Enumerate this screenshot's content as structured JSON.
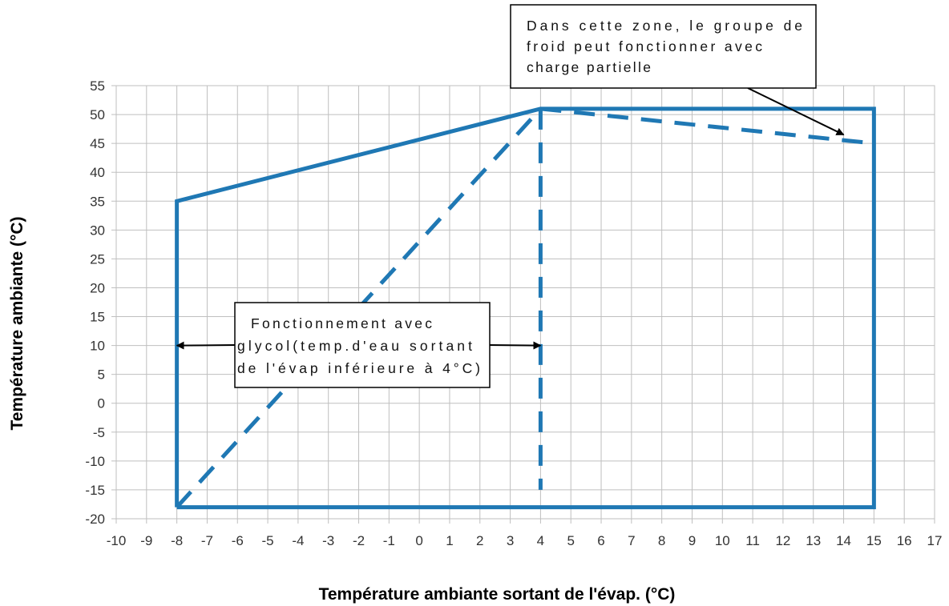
{
  "chart_data": {
    "type": "line",
    "title": "",
    "xlabel": "Température ambiante sortant de l'évap. (°C)",
    "ylabel": "Température ambiante (°C)",
    "xlim": [
      -10,
      17
    ],
    "ylim": [
      -20,
      55
    ],
    "x_ticks": [
      -10,
      -9,
      -8,
      -7,
      -6,
      -5,
      -4,
      -3,
      -2,
      -1,
      0,
      1,
      2,
      3,
      4,
      5,
      6,
      7,
      8,
      9,
      10,
      11,
      12,
      13,
      14,
      15,
      16,
      17
    ],
    "y_ticks": [
      55,
      50,
      45,
      40,
      35,
      30,
      25,
      20,
      15,
      10,
      5,
      0,
      -5,
      -10,
      -15,
      -20
    ],
    "grid": true,
    "colors": {
      "series": "#1f78b4",
      "grid": "#bfbfbf",
      "arrow": "#000000"
    },
    "series": [
      {
        "style": "solid",
        "x": [
          -8,
          -8,
          4,
          15,
          15,
          -8
        ],
        "y": [
          -18,
          35,
          51,
          51,
          -18,
          -18
        ]
      },
      {
        "style": "dashed",
        "x": [
          -8,
          4
        ],
        "y": [
          -18,
          51
        ]
      },
      {
        "style": "dashed",
        "x": [
          4,
          4
        ],
        "y": [
          51,
          -15
        ]
      },
      {
        "style": "dashed",
        "x": [
          4,
          15
        ],
        "y": [
          51,
          45
        ]
      }
    ],
    "annotations": [
      {
        "lines": [
          "Fonctionnement  avec",
          "glycol(temp.d'eau  sortant",
          "de l'évap inférieure à  4°C)"
        ],
        "arrows": [
          {
            "to": [
              -8,
              10
            ]
          },
          {
            "to": [
              4,
              10
            ]
          }
        ]
      },
      {
        "lines": [
          "Dans  cette  zone,  le  groupe  de",
          "froid  peut  fonctionner  avec",
          "charge partielle"
        ],
        "arrows": [
          {
            "to": [
              14,
              46.5
            ]
          }
        ]
      }
    ]
  }
}
